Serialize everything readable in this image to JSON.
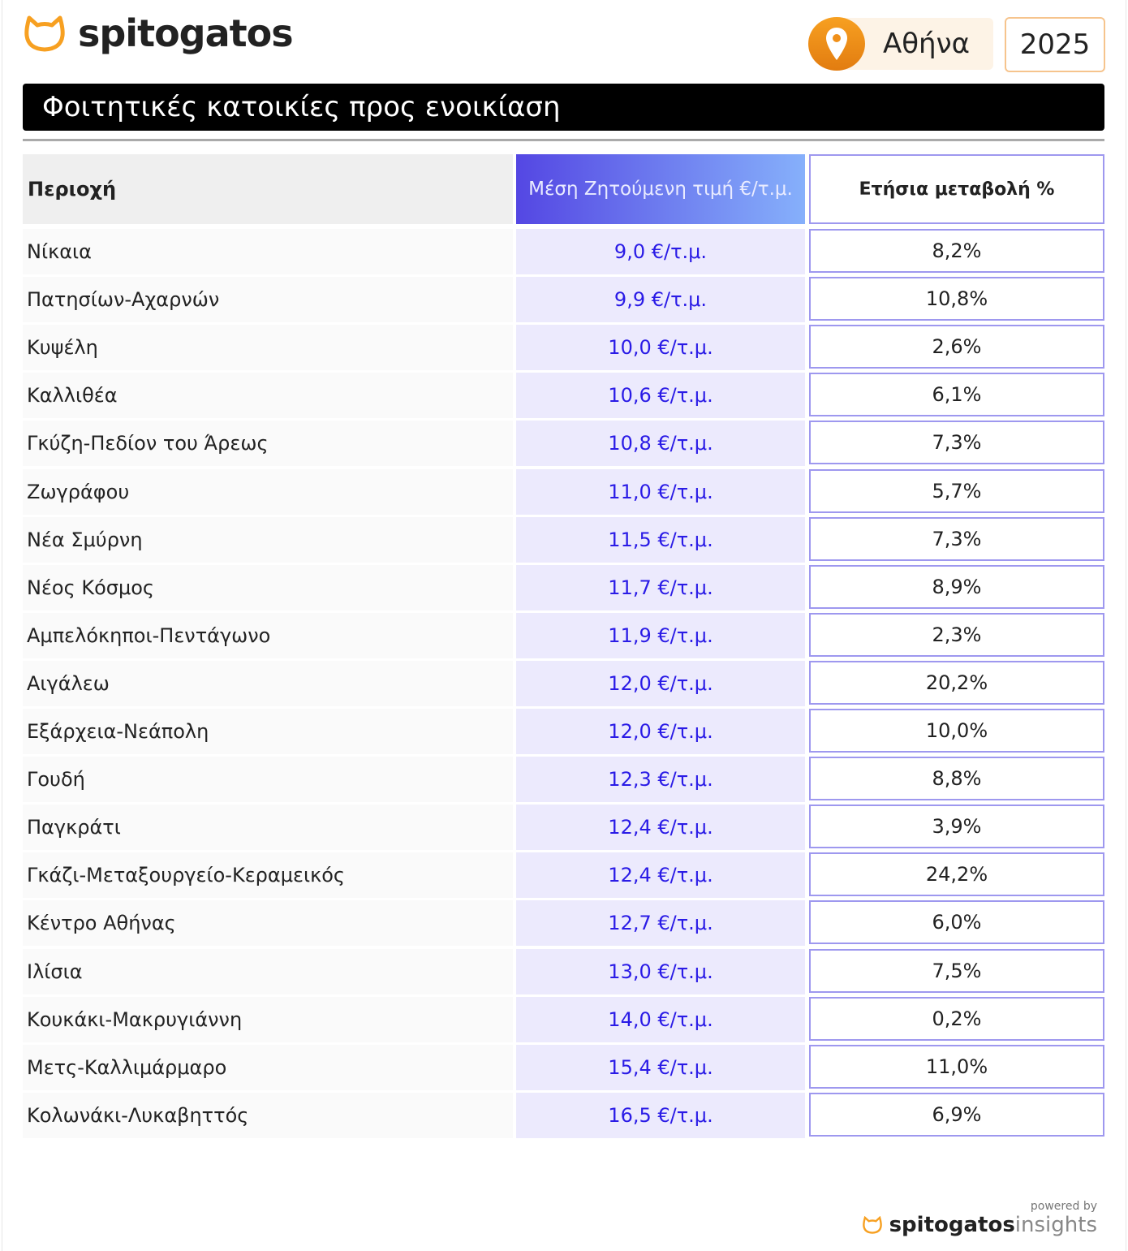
{
  "header": {
    "brand": "spitogatos",
    "brand_icon": "cat-head-icon",
    "location_icon": "map-pin-icon",
    "location": "Αθήνα",
    "year": "2025"
  },
  "title": "Φοιτητικές κατοικίες προς ενοικίαση",
  "table": {
    "columns": [
      "Περιοχή",
      "Μέση Ζητούμενη τιμή €/τ.μ.",
      "Ετήσια μεταβολή %"
    ],
    "rows": [
      {
        "area": "Νίκαια",
        "price": "9,0 €/τ.μ.",
        "change": "8,2%"
      },
      {
        "area": "Πατησίων-Αχαρνών",
        "price": "9,9 €/τ.μ.",
        "change": "10,8%"
      },
      {
        "area": "Κυψέλη",
        "price": "10,0 €/τ.μ.",
        "change": "2,6%"
      },
      {
        "area": "Καλλιθέα",
        "price": "10,6 €/τ.μ.",
        "change": "6,1%"
      },
      {
        "area": "Γκύζη-Πεδίον του Άρεως",
        "price": "10,8 €/τ.μ.",
        "change": "7,3%"
      },
      {
        "area": "Ζωγράφου",
        "price": "11,0 €/τ.μ.",
        "change": "5,7%"
      },
      {
        "area": "Νέα Σμύρνη",
        "price": "11,5 €/τ.μ.",
        "change": "7,3%"
      },
      {
        "area": "Νέος Κόσμος",
        "price": "11,7 €/τ.μ.",
        "change": "8,9%"
      },
      {
        "area": "Αμπελόκηποι-Πεντάγωνο",
        "price": "11,9 €/τ.μ.",
        "change": "2,3%"
      },
      {
        "area": "Αιγάλεω",
        "price": "12,0 €/τ.μ.",
        "change": "20,2%"
      },
      {
        "area": "Εξάρχεια-Νεάπολη",
        "price": "12,0 €/τ.μ.",
        "change": "10,0%"
      },
      {
        "area": "Γουδή",
        "price": "12,3 €/τ.μ.",
        "change": "8,8%"
      },
      {
        "area": "Παγκράτι",
        "price": "12,4 €/τ.μ.",
        "change": "3,9%"
      },
      {
        "area": "Γκάζι-Μεταξουργείο-Κεραμεικός",
        "price": "12,4 €/τ.μ.",
        "change": "24,2%"
      },
      {
        "area": "Κέντρο Αθήνας",
        "price": "12,7 €/τ.μ.",
        "change": "6,0%"
      },
      {
        "area": "Ιλίσια",
        "price": "13,0 €/τ.μ.",
        "change": "7,5%"
      },
      {
        "area": "Κουκάκι-Μακρυγιάννη",
        "price": "14,0 €/τ.μ.",
        "change": "0,2%"
      },
      {
        "area": "Μετς-Καλλιμάρμαρο",
        "price": "15,4 €/τ.μ.",
        "change": "11,0%"
      },
      {
        "area": "Κολωνάκι-Λυκαβηττός",
        "price": "16,5 €/τ.μ.",
        "change": "6,9%"
      }
    ]
  },
  "footer": {
    "powered_by": "powered by",
    "brand": "spitogatos",
    "product": "insights"
  },
  "colors": {
    "accent_orange": "#f7a021",
    "price_blue": "#2a1be6",
    "header_gradient_start": "#5447e3",
    "header_gradient_end": "#86b0fb"
  }
}
